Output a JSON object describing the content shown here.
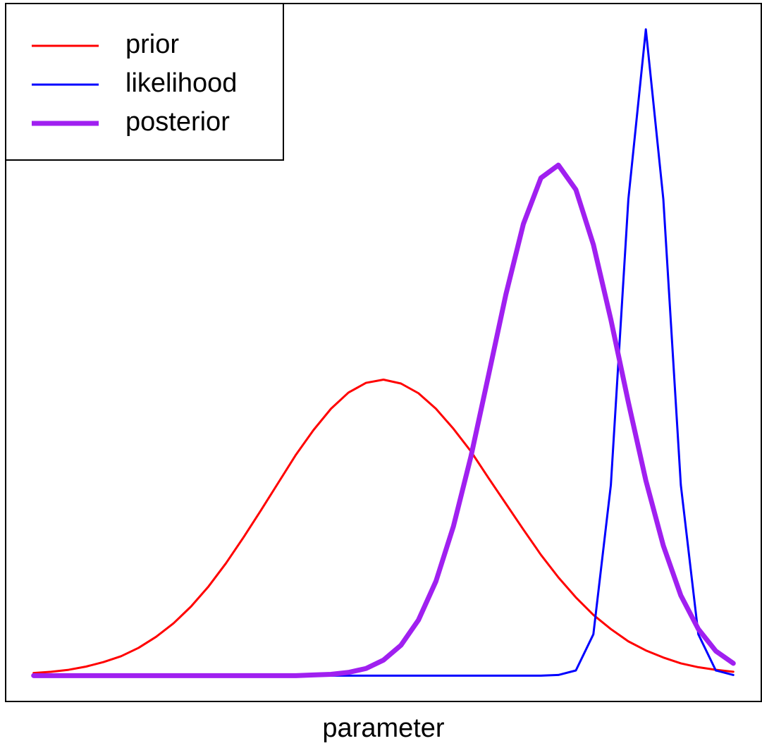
{
  "chart_data": {
    "type": "line",
    "xlabel": "parameter",
    "x": [
      0,
      2.5,
      5,
      7.5,
      10,
      12.5,
      15,
      17.5,
      20,
      22.5,
      25,
      27.5,
      30,
      32.5,
      35,
      37.5,
      40,
      42.5,
      45,
      47.5,
      50,
      52.5,
      55,
      57.5,
      60,
      62.5,
      65,
      67.5,
      70,
      72.5,
      75,
      77.5,
      80,
      82.5,
      85,
      87.5,
      90,
      92.5,
      95,
      97.5,
      100
    ],
    "series": [
      {
        "name": "prior",
        "color": "#ff0000",
        "line_width": 3,
        "values": [
          0.4,
          0.6,
          0.9,
          1.4,
          2.1,
          3.0,
          4.3,
          6.0,
          8.1,
          10.7,
          13.8,
          17.4,
          21.4,
          25.6,
          29.9,
          34.2,
          38.0,
          41.3,
          43.8,
          45.3,
          45.8,
          45.2,
          43.7,
          41.3,
          38.2,
          34.7,
          30.6,
          26.6,
          22.6,
          18.7,
          15.2,
          12.1,
          9.4,
          7.2,
          5.3,
          3.9,
          2.8,
          1.9,
          1.3,
          0.9,
          0.6
        ]
      },
      {
        "name": "likelihood",
        "color": "#0000ff",
        "line_width": 3,
        "values": [
          0,
          0,
          0,
          0,
          0,
          0,
          0,
          0,
          0,
          0,
          0,
          0,
          0,
          0,
          0,
          0,
          0,
          0,
          0,
          0,
          0,
          0,
          0,
          0,
          0,
          0,
          0,
          0,
          0,
          0,
          0.1,
          0.8,
          6.4,
          29.5,
          73.7,
          100,
          73.7,
          29.5,
          6.4,
          0.8,
          0.1
        ]
      },
      {
        "name": "posterior",
        "color": "#a020f0",
        "line_width": 7,
        "values": [
          0,
          0,
          0,
          0,
          0,
          0,
          0,
          0,
          0,
          0,
          0,
          0,
          0,
          0,
          0,
          0,
          0.1,
          0.2,
          0.5,
          1.1,
          2.4,
          4.7,
          8.6,
          14.6,
          23.1,
          33.9,
          46.4,
          59.0,
          69.9,
          77.0,
          79.0,
          75.2,
          66.7,
          55.1,
          42.3,
          30.2,
          20.1,
          12.4,
          7.2,
          3.8,
          1.9
        ]
      }
    ],
    "xlim": [
      -4,
      104
    ],
    "ylim": [
      -4,
      104
    ],
    "legend": "topleft",
    "grid": false
  }
}
